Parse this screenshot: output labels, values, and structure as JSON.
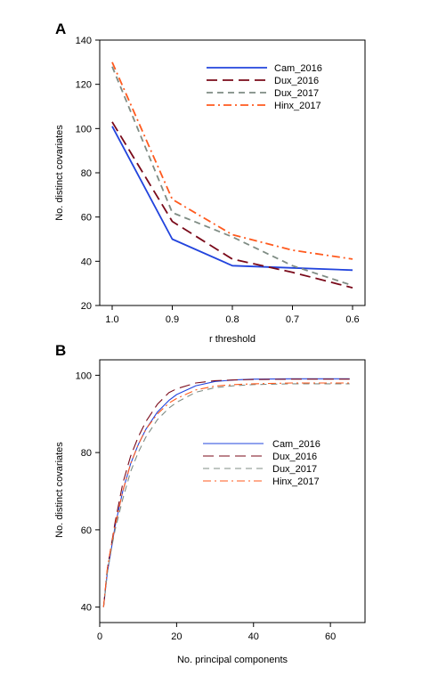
{
  "panels": [
    {
      "label": "A"
    },
    {
      "label": "B"
    }
  ],
  "chart_data": [
    {
      "type": "line",
      "panel": "A",
      "title": "",
      "xlabel": "r threshold",
      "ylabel": "No. distinct covariates",
      "x": [
        1.0,
        0.9,
        0.8,
        0.7,
        0.6
      ],
      "xticks": [
        "1.0",
        "0.9",
        "0.8",
        "0.7",
        "0.6"
      ],
      "xlim": [
        1.0,
        0.6
      ],
      "ylim": [
        20,
        140
      ],
      "yticks": [
        20,
        40,
        60,
        80,
        100,
        120,
        140
      ],
      "grid": false,
      "legend_position": "top-right",
      "series": [
        {
          "name": "Cam_2016",
          "color": "#2244dd",
          "dash": "solid",
          "values": [
            101,
            50,
            38,
            37,
            36
          ]
        },
        {
          "name": "Dux_2016",
          "color": "#7a0a1a",
          "dash": "long-dash",
          "values": [
            103,
            58,
            41,
            35,
            28
          ]
        },
        {
          "name": "Dux_2017",
          "color": "#7f8c84",
          "dash": "dash",
          "values": [
            128,
            62,
            51,
            38,
            29
          ]
        },
        {
          "name": "Hinx_2017",
          "color": "#ff5a1e",
          "dash": "dash-dot",
          "values": [
            130,
            68,
            52,
            45,
            41
          ]
        }
      ]
    },
    {
      "type": "line",
      "panel": "B",
      "title": "",
      "xlabel": "No. principal components",
      "ylabel": "No. distinct covariates",
      "xlim": [
        0,
        69
      ],
      "ylim": [
        36,
        104
      ],
      "xticks": [
        0,
        20,
        40,
        60
      ],
      "yticks": [
        40,
        60,
        80,
        100
      ],
      "grid": false,
      "legend_position": "center-right",
      "series": [
        {
          "name": "Cam_2016",
          "color": "#2244dd",
          "dash": "solid",
          "thin": true,
          "x": [
            1,
            2,
            3,
            4,
            6,
            8,
            10,
            12,
            15,
            18,
            20,
            25,
            30,
            35,
            40,
            50,
            60,
            65
          ],
          "values": [
            40,
            49,
            55,
            61,
            70,
            77,
            82,
            86,
            90.5,
            93.5,
            95,
            97.3,
            98.4,
            98.8,
            99.0,
            99.1,
            99.1,
            99.1
          ]
        },
        {
          "name": "Dux_2016",
          "color": "#7a0a1a",
          "dash": "long-dash",
          "thin": true,
          "x": [
            1,
            2,
            3,
            4,
            6,
            8,
            10,
            12,
            15,
            18,
            20,
            25,
            30,
            35,
            40,
            50,
            60,
            65
          ],
          "values": [
            40,
            50,
            56,
            62,
            72,
            79,
            84,
            88,
            92.5,
            95.5,
            96.5,
            98.0,
            98.6,
            98.8,
            98.9,
            99.0,
            99.0,
            99.0
          ]
        },
        {
          "name": "Dux_2017",
          "color": "#7f8c84",
          "dash": "dash",
          "thin": true,
          "x": [
            1,
            2,
            3,
            4,
            6,
            8,
            10,
            12,
            15,
            18,
            20,
            25,
            30,
            35,
            40,
            50,
            60,
            65
          ],
          "values": [
            40,
            49,
            55,
            60,
            68,
            75,
            80,
            84,
            88.5,
            91.5,
            93,
            95.6,
            96.8,
            97.3,
            97.6,
            97.8,
            97.8,
            97.8
          ]
        },
        {
          "name": "Hinx_2017",
          "color": "#ff5a1e",
          "dash": "dash-dot",
          "thin": true,
          "x": [
            1,
            2,
            3,
            4,
            6,
            8,
            10,
            12,
            15,
            18,
            20,
            25,
            30,
            35,
            40,
            50,
            60,
            65
          ],
          "values": [
            40,
            50,
            56,
            61,
            70,
            77,
            82,
            86,
            90,
            92.8,
            94,
            96.2,
            97.2,
            97.6,
            97.8,
            98.0,
            98.0,
            98.0
          ]
        }
      ]
    }
  ]
}
